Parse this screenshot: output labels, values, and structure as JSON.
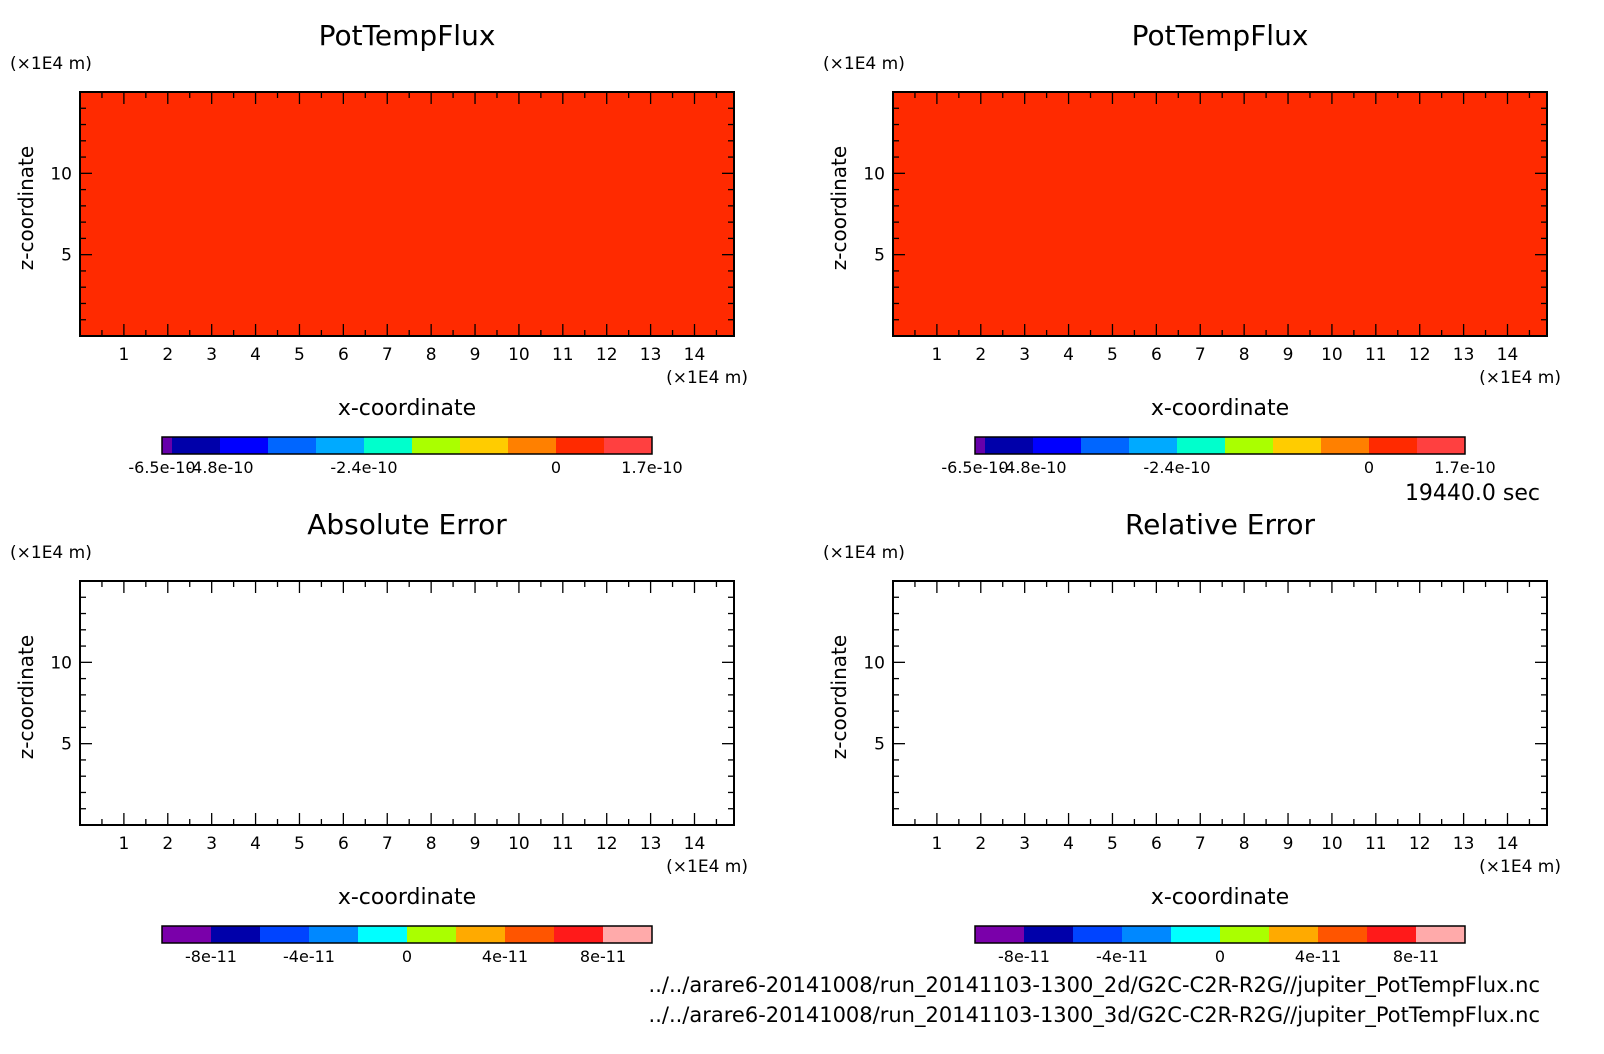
{
  "time_label": "19440.0 sec",
  "file_paths": [
    "../../arare6-20141008/run_20141103-1300_2d/G2C-C2R-R2G//jupiter_PotTempFlux.nc",
    "../../arare6-20141008/run_20141103-1300_3d/G2C-C2R-R2G//jupiter_PotTempFlux.nc"
  ],
  "chart_data": [
    {
      "type": "heatmap",
      "title": "PotTempFlux",
      "xlabel": "x-coordinate",
      "ylabel": "z-coordinate",
      "x_unit": "(×1E4 m)",
      "y_unit": "(×1E4 m)",
      "xlim": [
        0,
        14.9
      ],
      "ylim": [
        0,
        15
      ],
      "x_ticks": [
        "1",
        "2",
        "3",
        "4",
        "5",
        "6",
        "7",
        "8",
        "9",
        "10",
        "11",
        "12",
        "13",
        "14"
      ],
      "y_ticks": [
        "5",
        "10"
      ],
      "field_color": "#ff2a00",
      "colorbar": {
        "colors": [
          "#6600aa",
          "#0000aa",
          "#0000ff",
          "#0066ff",
          "#00aaff",
          "#00ffcc",
          "#aaff00",
          "#ffcc00",
          "#ff8000",
          "#ff2a00",
          "#ff4040"
        ],
        "tick_labels": [
          "-6.5e-10",
          "-4.8e-10",
          "-2.4e-10",
          "0",
          "1.7e-10"
        ]
      }
    },
    {
      "type": "heatmap",
      "title": "PotTempFlux",
      "xlabel": "x-coordinate",
      "ylabel": "z-coordinate",
      "x_unit": "(×1E4 m)",
      "y_unit": "(×1E4 m)",
      "xlim": [
        0,
        14.9
      ],
      "ylim": [
        0,
        15
      ],
      "x_ticks": [
        "1",
        "2",
        "3",
        "4",
        "5",
        "6",
        "7",
        "8",
        "9",
        "10",
        "11",
        "12",
        "13",
        "14"
      ],
      "y_ticks": [
        "5",
        "10"
      ],
      "field_color": "#ff2a00",
      "colorbar": {
        "colors": [
          "#6600aa",
          "#0000aa",
          "#0000ff",
          "#0066ff",
          "#00aaff",
          "#00ffcc",
          "#aaff00",
          "#ffcc00",
          "#ff8000",
          "#ff2a00",
          "#ff4040"
        ],
        "tick_labels": [
          "-6.5e-10",
          "-4.8e-10",
          "-2.4e-10",
          "0",
          "1.7e-10"
        ]
      }
    },
    {
      "type": "heatmap",
      "title": "Absolute Error",
      "xlabel": "x-coordinate",
      "ylabel": "z-coordinate",
      "x_unit": "(×1E4 m)",
      "y_unit": "(×1E4 m)",
      "xlim": [
        0,
        14.9
      ],
      "ylim": [
        0,
        15
      ],
      "x_ticks": [
        "1",
        "2",
        "3",
        "4",
        "5",
        "6",
        "7",
        "8",
        "9",
        "10",
        "11",
        "12",
        "13",
        "14"
      ],
      "y_ticks": [
        "5",
        "10"
      ],
      "field_color": "#ffffff",
      "colorbar": {
        "colors": [
          "#7a00aa",
          "#0000aa",
          "#0044ff",
          "#0088ff",
          "#00ffff",
          "#aaff00",
          "#ffaa00",
          "#ff5500",
          "#ff1a1a",
          "#ffaaaa"
        ],
        "tick_labels": [
          "-8e-11",
          "-4e-11",
          "0",
          "4e-11",
          "8e-11"
        ]
      }
    },
    {
      "type": "heatmap",
      "title": "Relative Error",
      "xlabel": "x-coordinate",
      "ylabel": "z-coordinate",
      "x_unit": "(×1E4 m)",
      "y_unit": "(×1E4 m)",
      "xlim": [
        0,
        14.9
      ],
      "ylim": [
        0,
        15
      ],
      "x_ticks": [
        "1",
        "2",
        "3",
        "4",
        "5",
        "6",
        "7",
        "8",
        "9",
        "10",
        "11",
        "12",
        "13",
        "14"
      ],
      "y_ticks": [
        "5",
        "10"
      ],
      "field_color": "#ffffff",
      "colorbar": {
        "colors": [
          "#7a00aa",
          "#0000aa",
          "#0044ff",
          "#0088ff",
          "#00ffff",
          "#aaff00",
          "#ffaa00",
          "#ff5500",
          "#ff1a1a",
          "#ffaaaa"
        ],
        "tick_labels": [
          "-8e-11",
          "-4e-11",
          "0",
          "4e-11",
          "8e-11"
        ]
      }
    }
  ]
}
